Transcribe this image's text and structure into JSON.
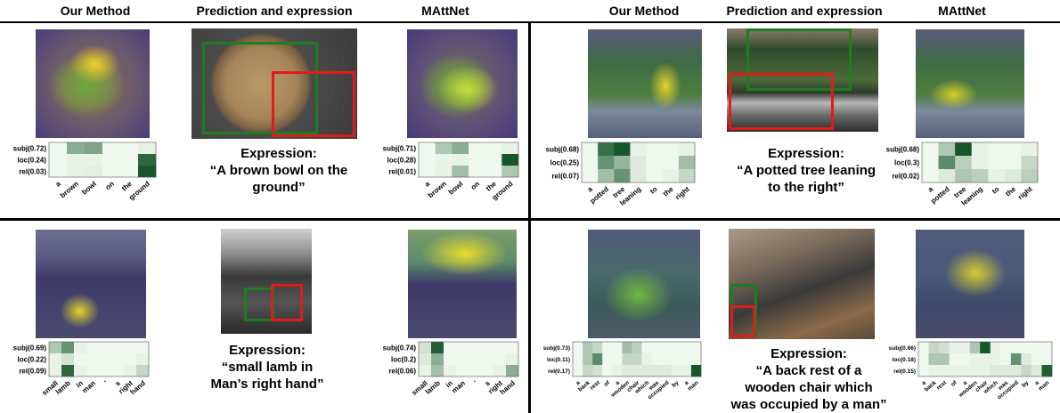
{
  "headers": [
    "Our Method",
    "Prediction and expression",
    "MAttNet"
  ],
  "colors": {
    "gt_box": "#1e7d1e",
    "pred_box": "#e01b1b",
    "heat_low": "#f4fbf2",
    "heat_high": "#0b4d1e"
  },
  "panels": [
    {
      "name": "bowl",
      "expression_label": "Expression:",
      "expression_lines": [
        "“A brown bowl on the",
        "ground”"
      ],
      "words": [
        "a",
        "brown",
        "bowl",
        "on",
        "the",
        "ground"
      ],
      "ours": {
        "modules": [
          "subj(0.72)",
          "loc(0.24)",
          "rel(0.03)"
        ],
        "weights": [
          [
            0.02,
            0.45,
            0.5,
            0.02,
            0.02,
            0.05
          ],
          [
            0.02,
            0.05,
            0.05,
            0.02,
            0.02,
            0.85
          ],
          [
            0.02,
            0.05,
            0.07,
            0.02,
            0.02,
            0.95
          ]
        ]
      },
      "mattnet": {
        "modules": [
          "subj(0.71)",
          "loc(0.28)",
          "rel(0.01)"
        ],
        "weights": [
          [
            0.02,
            0.3,
            0.45,
            0.02,
            0.02,
            0.05
          ],
          [
            0.02,
            0.04,
            0.05,
            0.02,
            0.02,
            0.95
          ],
          [
            0.02,
            0.05,
            0.35,
            0.02,
            0.02,
            0.3
          ]
        ]
      }
    },
    {
      "name": "tree",
      "expression_label": "Expression:",
      "expression_lines": [
        "“A potted tree leaning",
        "to the right”"
      ],
      "words": [
        "a",
        "potted",
        "tree",
        "leaning",
        "to",
        "the",
        "right"
      ],
      "ours": {
        "modules": [
          "subj(0.68)",
          "loc(0.25)",
          "rel(0.07)"
        ],
        "weights": [
          [
            0.02,
            0.8,
            0.95,
            0.05,
            0.02,
            0.02,
            0.05
          ],
          [
            0.02,
            0.6,
            0.4,
            0.1,
            0.02,
            0.02,
            0.35
          ],
          [
            0.02,
            0.35,
            0.6,
            0.1,
            0.02,
            0.05,
            0.2
          ]
        ]
      },
      "mattnet": {
        "modules": [
          "subj(0.68)",
          "loc(0.3)",
          "rel(0.02)"
        ],
        "weights": [
          [
            0.02,
            0.3,
            0.95,
            0.05,
            0.02,
            0.02,
            0.05
          ],
          [
            0.02,
            0.65,
            0.25,
            0.05,
            0.02,
            0.02,
            0.2
          ],
          [
            0.02,
            0.1,
            0.3,
            0.25,
            0.05,
            0.1,
            0.25
          ]
        ]
      }
    },
    {
      "name": "lamb",
      "expression_label": "Expression:",
      "expression_lines": [
        "“small lamb in",
        "Man’s right hand”"
      ],
      "words": [
        "small",
        "lamb",
        "in",
        "man",
        "'",
        "s",
        "right",
        "hand"
      ],
      "ours": {
        "modules": [
          "subj(0.69)",
          "loc(0.22)",
          "rel(0.09)"
        ],
        "weights": [
          [
            0.3,
            0.6,
            0.05,
            0.02,
            0.02,
            0.02,
            0.02,
            0.02
          ],
          [
            0.05,
            0.15,
            0.02,
            0.02,
            0.02,
            0.02,
            0.02,
            0.05
          ],
          [
            0.05,
            0.85,
            0.05,
            0.02,
            0.02,
            0.02,
            0.05,
            0.2
          ]
        ]
      },
      "mattnet": {
        "modules": [
          "subj(0.74)",
          "loc(0.2)",
          "rel(0.06)"
        ],
        "weights": [
          [
            0.15,
            0.9,
            0.02,
            0.02,
            0.02,
            0.02,
            0.02,
            0.02
          ],
          [
            0.1,
            0.45,
            0.02,
            0.02,
            0.02,
            0.02,
            0.02,
            0.05
          ],
          [
            0.05,
            0.35,
            0.05,
            0.02,
            0.02,
            0.02,
            0.05,
            0.45
          ]
        ]
      }
    },
    {
      "name": "chair",
      "expression_label": "Expression:",
      "expression_lines": [
        "“A back rest of a",
        "wooden chair which",
        "was occupied by a man”"
      ],
      "words": [
        "a",
        "back",
        "rest",
        "of",
        "a",
        "wooden",
        "chair",
        "which",
        "was",
        "occupied",
        "by",
        "a",
        "man"
      ],
      "ours": {
        "modules": [
          "subj(0.73)",
          "loc(0.11)",
          "rel(0.17)"
        ],
        "weights": [
          [
            0.02,
            0.3,
            0.2,
            0.02,
            0.02,
            0.35,
            0.25,
            0.02,
            0.02,
            0.02,
            0.02,
            0.02,
            0.02
          ],
          [
            0.02,
            0.3,
            0.65,
            0.02,
            0.02,
            0.2,
            0.2,
            0.05,
            0.02,
            0.02,
            0.02,
            0.02,
            0.02
          ],
          [
            0.02,
            0.2,
            0.15,
            0.02,
            0.05,
            0.1,
            0.1,
            0.1,
            0.1,
            0.1,
            0.05,
            0.05,
            0.95
          ]
        ]
      },
      "mattnet": {
        "modules": [
          "subj(0.66)",
          "loc(0.18)",
          "rel(0.15)"
        ],
        "weights": [
          [
            0.02,
            0.2,
            0.15,
            0.05,
            0.05,
            0.3,
            0.95,
            0.05,
            0.02,
            0.02,
            0.02,
            0.02,
            0.02
          ],
          [
            0.02,
            0.3,
            0.3,
            0.02,
            0.02,
            0.05,
            0.05,
            0.05,
            0.02,
            0.6,
            0.1,
            0.02,
            0.02
          ],
          [
            0.02,
            0.05,
            0.05,
            0.05,
            0.05,
            0.05,
            0.05,
            0.1,
            0.1,
            0.1,
            0.2,
            0.1,
            0.9
          ]
        ]
      }
    }
  ]
}
